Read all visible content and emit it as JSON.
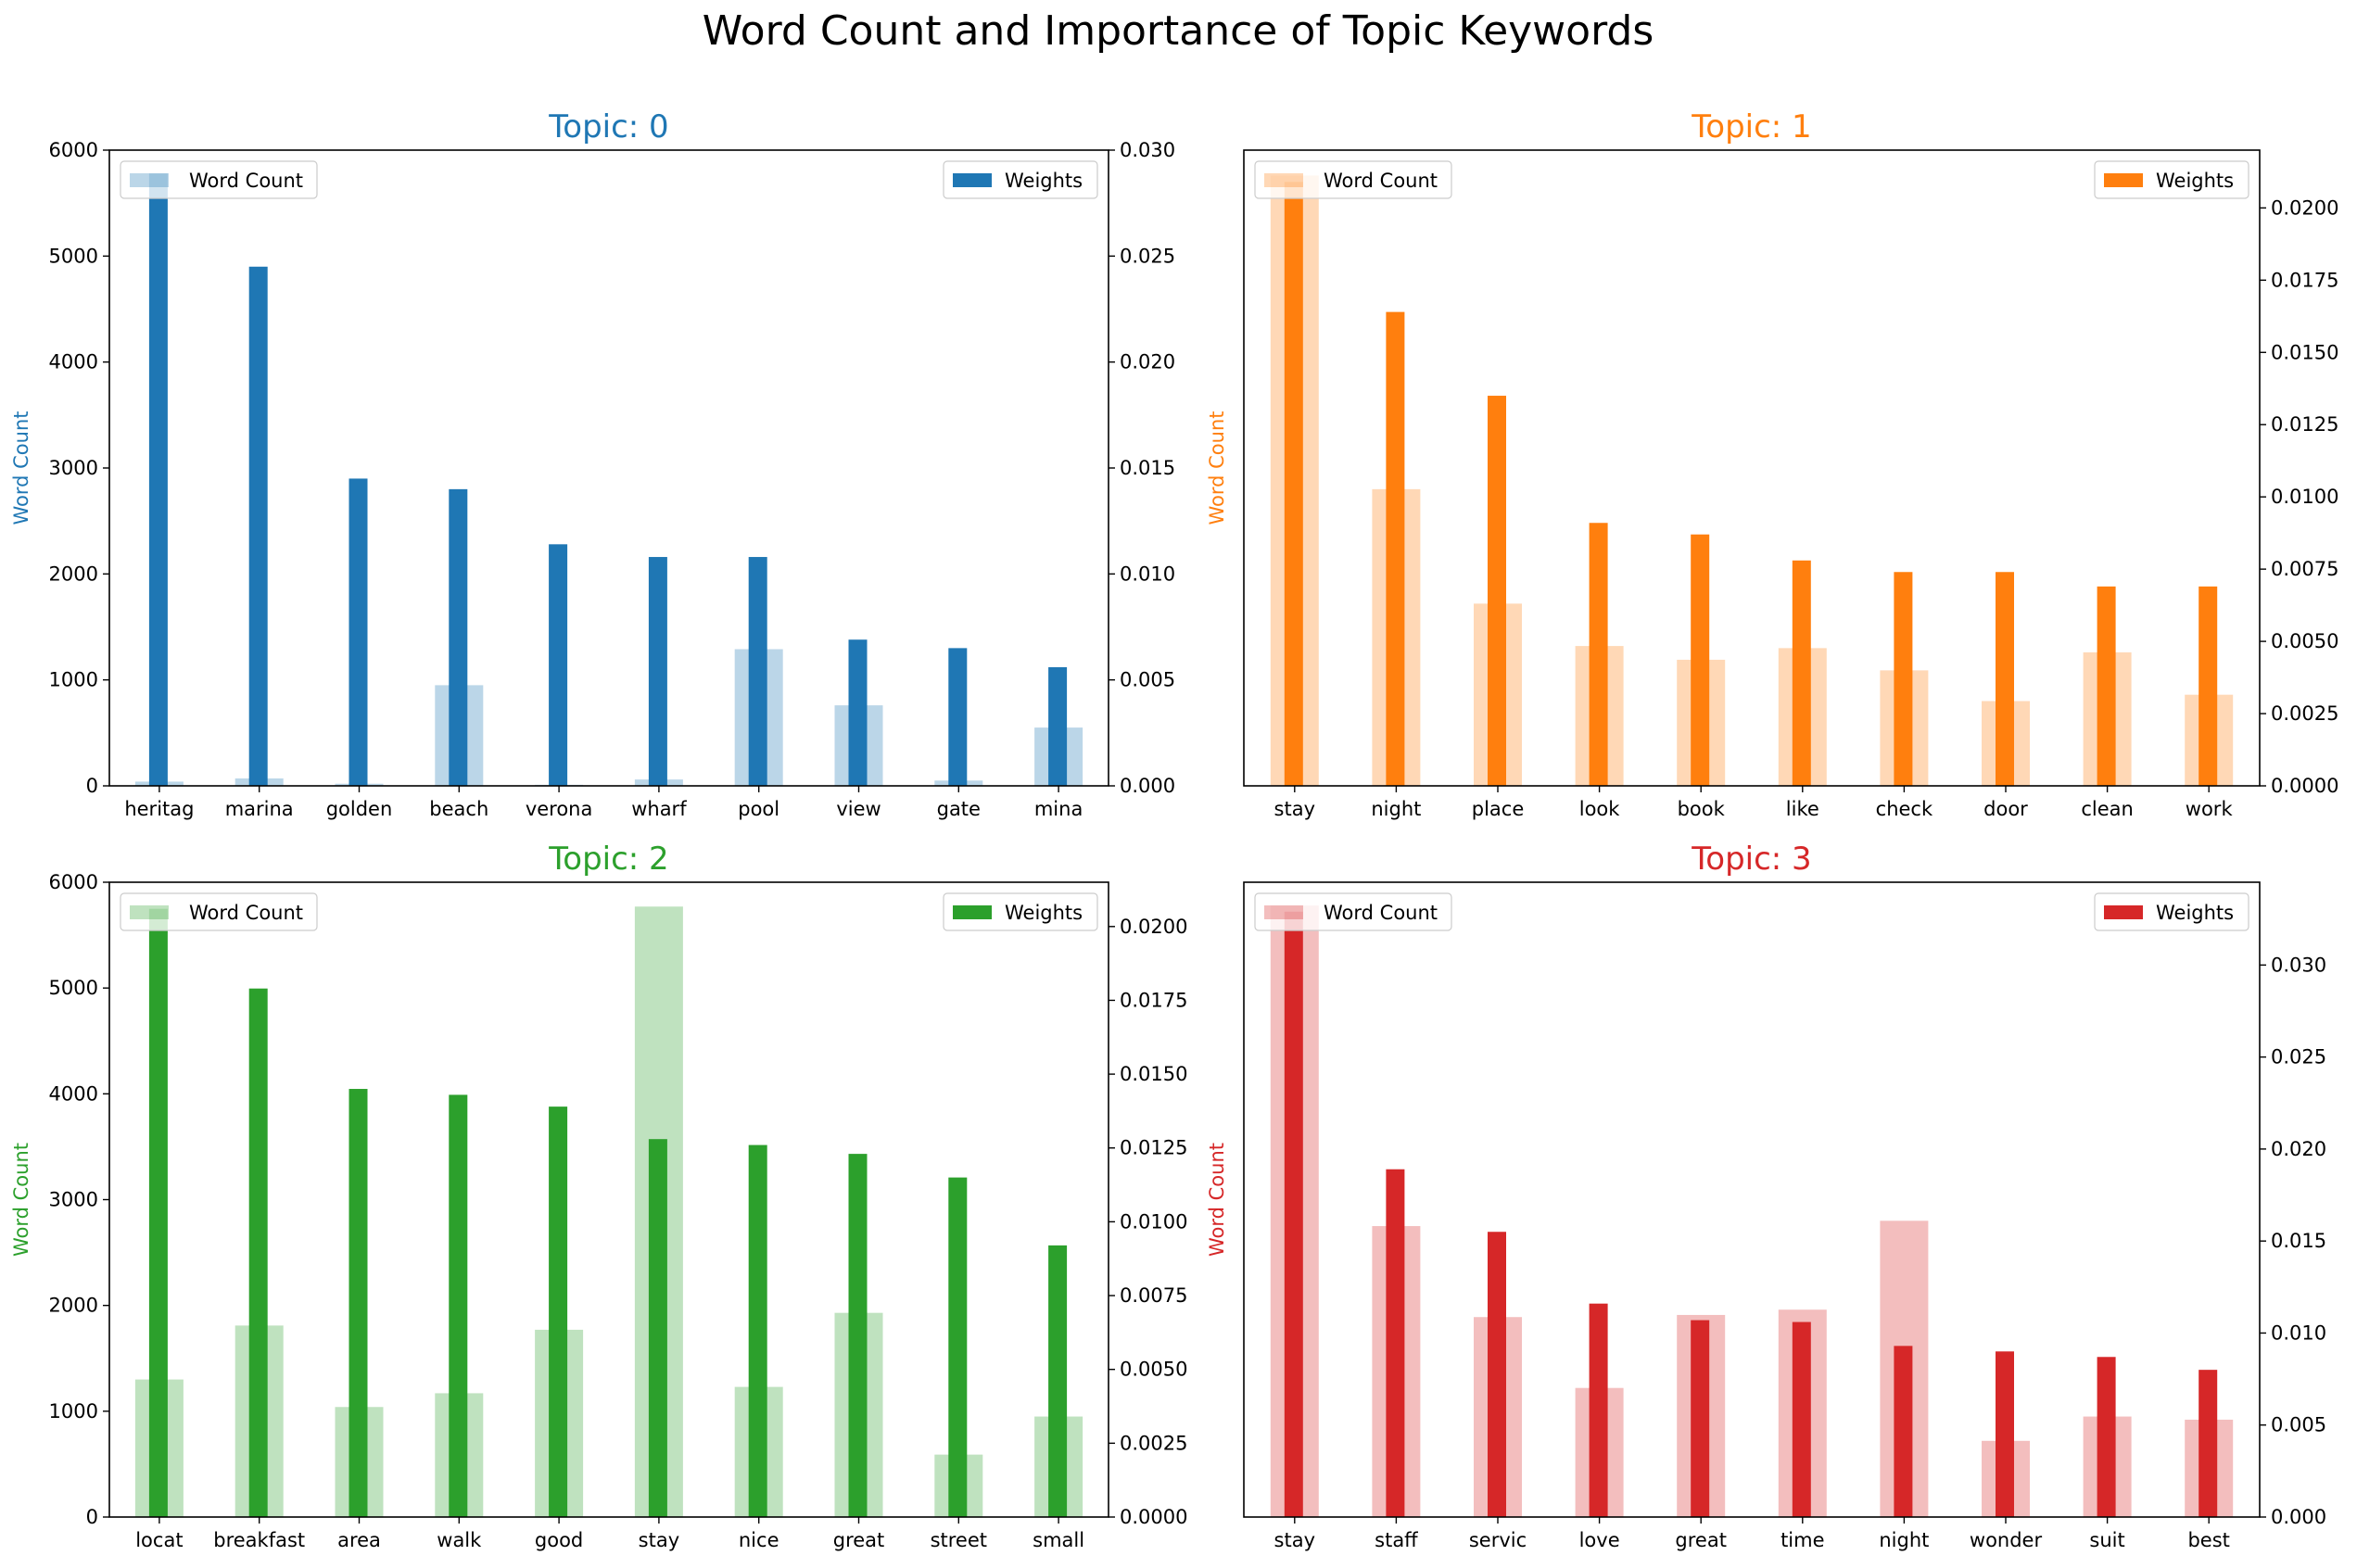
{
  "figure": {
    "title": "Word Count and Importance of Topic Keywords"
  },
  "colors": {
    "topic0": "#1f77b4",
    "topic1": "#ff7f0e",
    "topic2": "#2ca02c",
    "topic3": "#d62728"
  },
  "chart_data": [
    {
      "type": "bar",
      "title": "Topic: 0",
      "color": "#1f77b4",
      "ylabel": "Word Count",
      "ylim": [
        0,
        6000
      ],
      "yticks": [
        0,
        1000,
        2000,
        3000,
        4000,
        5000,
        6000
      ],
      "y2lim": [
        0,
        0.03
      ],
      "y2ticks": [
        "0.000",
        "0.005",
        "0.010",
        "0.015",
        "0.020",
        "0.025",
        "0.030"
      ],
      "legend_left": "Word Count",
      "legend_right": "Weights",
      "categories": [
        "heritag",
        "marina",
        "golden",
        "beach",
        "verona",
        "wharf",
        "pool",
        "view",
        "gate",
        "mina"
      ],
      "series": [
        {
          "name": "Word Count",
          "axis": "left",
          "values": [
            40,
            70,
            20,
            950,
            10,
            60,
            1290,
            760,
            50,
            550
          ]
        },
        {
          "name": "Weights",
          "axis": "right",
          "values": [
            0.0289,
            0.0245,
            0.0145,
            0.014,
            0.0114,
            0.0108,
            0.0108,
            0.0069,
            0.0065,
            0.0056
          ]
        }
      ]
    },
    {
      "type": "bar",
      "title": "Topic: 1",
      "color": "#ff7f0e",
      "ylabel": "Word Count",
      "ylim": [
        0,
        6000
      ],
      "yticks": [],
      "y2lim": [
        0,
        0.022
      ],
      "y2ticks": [
        "0.0000",
        "0.0025",
        "0.0050",
        "0.0075",
        "0.0100",
        "0.0125",
        "0.0150",
        "0.0175",
        "0.0200"
      ],
      "legend_left": "Word Count",
      "legend_right": "Weights",
      "categories": [
        "stay",
        "night",
        "place",
        "look",
        "book",
        "like",
        "check",
        "door",
        "clean",
        "work"
      ],
      "series": [
        {
          "name": "Word Count",
          "axis": "left",
          "values": [
            5760,
            2800,
            1720,
            1320,
            1190,
            1300,
            1090,
            800,
            1260,
            860
          ]
        },
        {
          "name": "Weights",
          "axis": "right",
          "values": [
            0.0209,
            0.0164,
            0.0135,
            0.0091,
            0.0087,
            0.0078,
            0.0074,
            0.0074,
            0.0069,
            0.0069
          ]
        }
      ]
    },
    {
      "type": "bar",
      "title": "Topic: 2",
      "color": "#2ca02c",
      "ylabel": "Word Count",
      "ylim": [
        0,
        6000
      ],
      "yticks": [
        0,
        1000,
        2000,
        3000,
        4000,
        5000,
        6000
      ],
      "y2lim": [
        0,
        0.0215
      ],
      "y2ticks": [
        "0.0000",
        "0.0025",
        "0.0050",
        "0.0075",
        "0.0100",
        "0.0125",
        "0.0150",
        "0.0175",
        "0.0200"
      ],
      "legend_left": "Word Count",
      "legend_right": "Weights",
      "categories": [
        "locat",
        "breakfast",
        "area",
        "walk",
        "good",
        "stay",
        "nice",
        "great",
        "street",
        "small"
      ],
      "series": [
        {
          "name": "Word Count",
          "axis": "left",
          "values": [
            1300,
            1810,
            1040,
            1170,
            1770,
            5770,
            1230,
            1930,
            590,
            950
          ]
        },
        {
          "name": "Weights",
          "axis": "right",
          "values": [
            0.0206,
            0.0179,
            0.0145,
            0.0143,
            0.0139,
            0.0128,
            0.0126,
            0.0123,
            0.0115,
            0.0092
          ]
        }
      ]
    },
    {
      "type": "bar",
      "title": "Topic: 3",
      "color": "#d62728",
      "ylabel": "Word Count",
      "ylim": [
        0,
        6000
      ],
      "yticks": [],
      "y2lim": [
        0,
        0.0345
      ],
      "y2ticks": [
        "0.000",
        "0.005",
        "0.010",
        "0.015",
        "0.020",
        "0.025",
        "0.030"
      ],
      "legend_left": "Word Count",
      "legend_right": "Weights",
      "categories": [
        "stay",
        "staff",
        "servic",
        "love",
        "great",
        "time",
        "night",
        "wonder",
        "suit",
        "best"
      ],
      "series": [
        {
          "name": "Word Count",
          "axis": "left",
          "values": [
            5780,
            2750,
            1890,
            1220,
            1910,
            1960,
            2800,
            720,
            950,
            920
          ]
        },
        {
          "name": "Weights",
          "axis": "right",
          "values": [
            0.0329,
            0.0189,
            0.0155,
            0.0116,
            0.0107,
            0.0106,
            0.0093,
            0.009,
            0.0087,
            0.008
          ]
        }
      ]
    }
  ]
}
